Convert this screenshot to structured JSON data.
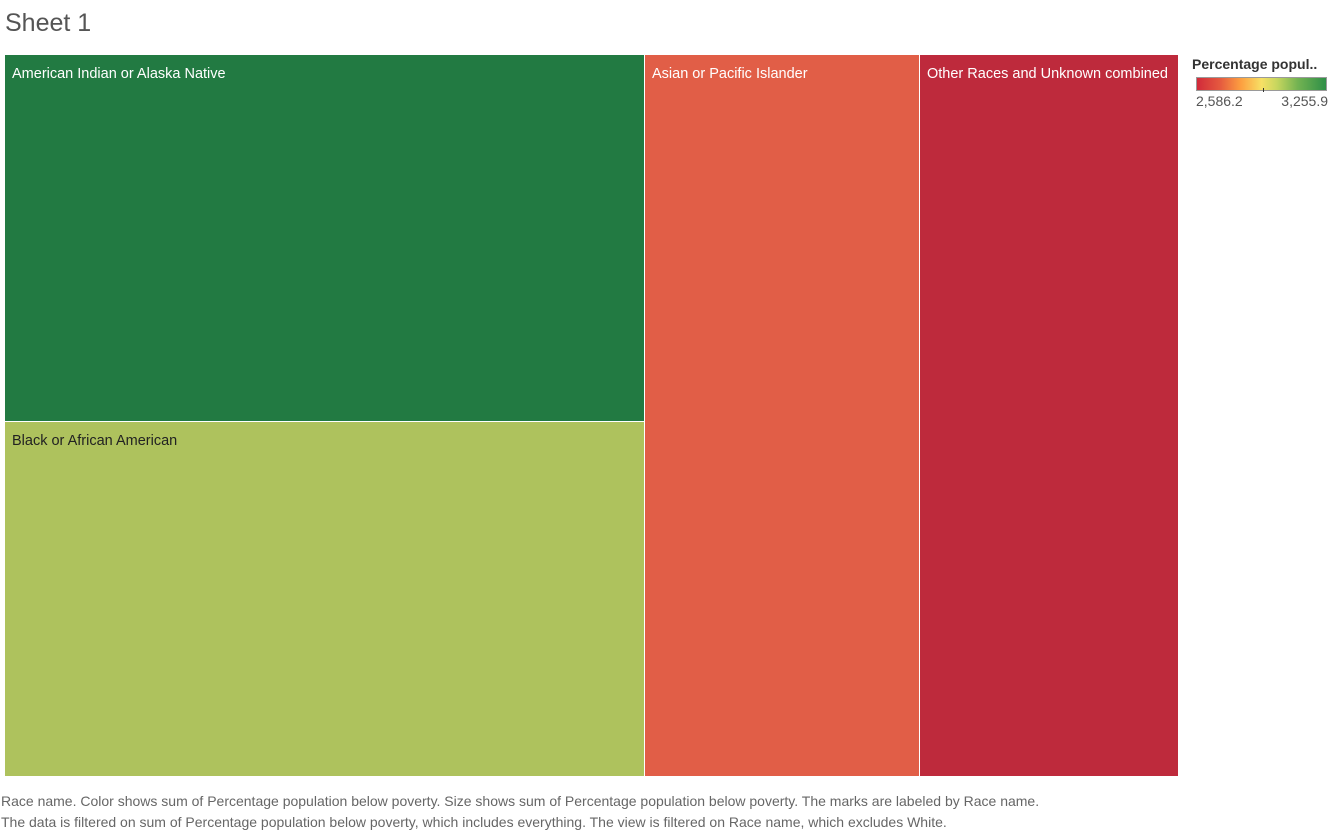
{
  "sheet": {
    "title": "Sheet 1"
  },
  "legend": {
    "title": "Percentage popul..",
    "min_label": "2,586.2",
    "max_label": "3,255.9",
    "palette": [
      "#d12a3a",
      "#e55a3f",
      "#fd9f40",
      "#f7e065",
      "#c6d65e",
      "#73b352",
      "#2e8f47"
    ]
  },
  "chart_data": {
    "type": "treemap",
    "size_measure": "sum of Percentage population below poverty",
    "color_measure": "sum of Percentage population below poverty",
    "color_range": [
      2586.2,
      3255.9
    ],
    "items": [
      {
        "label": "American Indian or Alaska Native",
        "value": 3255.9,
        "color": "#227a42"
      },
      {
        "label": "Black or African American",
        "value": 3150,
        "color": "#aec25d"
      },
      {
        "label": "Asian or Pacific Islander",
        "value": 2750,
        "color": "#e15e47"
      },
      {
        "label": "Other Races and Unknown combined",
        "value": 2586.2,
        "color": "#be2a3c"
      }
    ]
  },
  "caption": {
    "line1": "Race name.  Color shows sum of Percentage population below poverty.  Size shows sum of Percentage population below poverty.  The marks are labeled by Race name.",
    "line2": "The data is filtered on sum of Percentage population below poverty, which includes everything. The view is filtered on Race name, which excludes White."
  }
}
